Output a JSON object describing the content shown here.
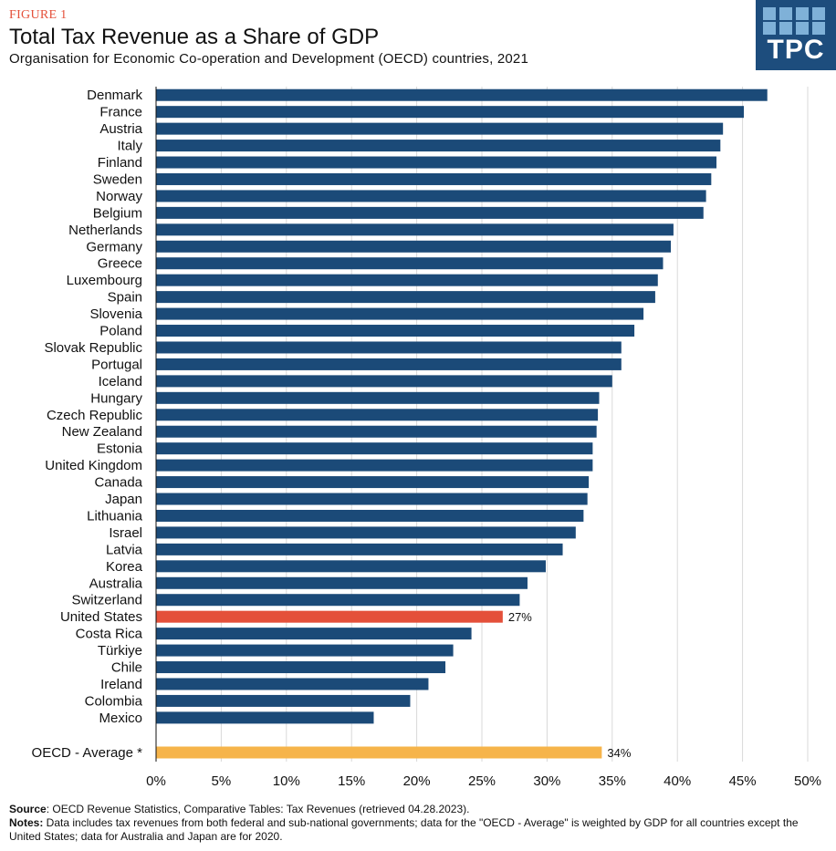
{
  "figure_label": "FIGURE 1",
  "title": "Total Tax Revenue as a Share of GDP",
  "subtitle": "Organisation for Economic Co-operation and Development (OECD) countries, 2021",
  "logo_text": "TPC",
  "colors": {
    "bar": "#1b4a78",
    "highlight": "#e4503a",
    "average": "#f6b44a",
    "grid": "#d9d9d9",
    "logo_bg": "#1d4d7d",
    "logo_squares": "#7fb1d8"
  },
  "chart_data": {
    "type": "bar",
    "orientation": "horizontal",
    "categories": [
      "Denmark",
      "France",
      "Austria",
      "Italy",
      "Finland",
      "Sweden",
      "Norway",
      "Belgium",
      "Netherlands",
      "Germany",
      "Greece",
      "Luxembourg",
      "Spain",
      "Slovenia",
      "Poland",
      "Slovak Republic",
      "Portugal",
      "Iceland",
      "Hungary",
      "Czech Republic",
      "New Zealand",
      "Estonia",
      "United Kingdom",
      "Canada",
      "Japan",
      "Lithuania",
      "Israel",
      "Latvia",
      "Korea",
      "Australia",
      "Switzerland",
      "United States",
      "Costa Rica",
      "Türkiye",
      "Chile",
      "Ireland",
      "Colombia",
      "Mexico"
    ],
    "values": [
      46.9,
      45.1,
      43.5,
      43.3,
      43.0,
      42.6,
      42.2,
      42.0,
      39.7,
      39.5,
      38.9,
      38.5,
      38.3,
      37.4,
      36.7,
      35.7,
      35.7,
      35.0,
      34.0,
      33.9,
      33.8,
      33.5,
      33.5,
      33.2,
      33.1,
      32.8,
      32.2,
      31.2,
      29.9,
      28.5,
      27.9,
      26.6,
      24.2,
      22.8,
      22.2,
      20.9,
      19.5,
      16.7
    ],
    "highlight": {
      "category": "United States",
      "label": "27%"
    },
    "average": {
      "category": "OECD - Average *",
      "value": 34.2,
      "label": "34%"
    },
    "xlim": [
      0,
      50
    ],
    "xticks": [
      "0%",
      "5%",
      "10%",
      "15%",
      "20%",
      "25%",
      "30%",
      "35%",
      "40%",
      "45%",
      "50%"
    ],
    "grid": true
  },
  "source_label": "Source",
  "source_text": ": OECD Revenue Statistics, Comparative Tables: Tax Revenues (retrieved 04.28.2023).",
  "notes_label": "Notes:",
  "notes_text": " Data includes tax revenues from both federal and sub-national governments; data for the \"OECD - Average\" is weighted by GDP for all countries except the United States; data for Australia and Japan are for 2020."
}
